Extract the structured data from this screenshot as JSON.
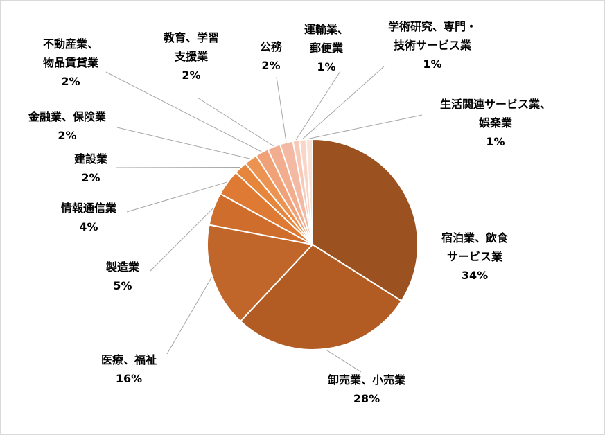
{
  "chart_data": {
    "type": "pie",
    "title": "",
    "slices": [
      {
        "name": "宿泊業、飲食サービス業",
        "label_lines": [
          "宿泊業、飲食",
          "サービス業"
        ],
        "value": 34,
        "value_label": "34%",
        "color": "#9c5220"
      },
      {
        "name": "卸売業、小売業",
        "label_lines": [
          "卸売業、小売業"
        ],
        "value": 28,
        "value_label": "28%",
        "color": "#b25c24"
      },
      {
        "name": "医療、福祉",
        "label_lines": [
          "医療、福祉"
        ],
        "value": 16,
        "value_label": "16%",
        "color": "#c0662a"
      },
      {
        "name": "製造業",
        "label_lines": [
          "製造業"
        ],
        "value": 5,
        "value_label": "5%",
        "color": "#cf6d2d"
      },
      {
        "name": "情報通信業",
        "label_lines": [
          "情報通信業"
        ],
        "value": 4,
        "value_label": "4%",
        "color": "#df7a34"
      },
      {
        "name": "建設業",
        "label_lines": [
          "建設業"
        ],
        "value": 2,
        "value_label": "2%",
        "color": "#e6853c"
      },
      {
        "name": "金融業、保険業",
        "label_lines": [
          "金融業、保険業"
        ],
        "value": 2,
        "value_label": "2%",
        "color": "#ed9351"
      },
      {
        "name": "不動産業、物品賃貸業",
        "label_lines": [
          "不動産業、",
          "物品賃貸業"
        ],
        "value": 2,
        "value_label": "2%",
        "color": "#f0a178"
      },
      {
        "name": "教育、学習支援業",
        "label_lines": [
          "教育、学習",
          "支援業"
        ],
        "value": 2,
        "value_label": "2%",
        "color": "#f2ad8e"
      },
      {
        "name": "公務",
        "label_lines": [
          "公務"
        ],
        "value": 2,
        "value_label": "2%",
        "color": "#f4b9a2"
      },
      {
        "name": "運輸業、郵便業",
        "label_lines": [
          "運輸業、",
          "郵便業"
        ],
        "value": 1,
        "value_label": "1%",
        "color": "#f7c9b6"
      },
      {
        "name": "学術研究、専門・技術サービス業",
        "label_lines": [
          "学術研究、専門・",
          "技術サービス業"
        ],
        "value": 1,
        "value_label": "1%",
        "color": "#f8d5c6"
      },
      {
        "name": "生活関連サービス業、娯楽業",
        "label_lines": [
          "生活関連サービス業、",
          "娯楽業"
        ],
        "value": 1,
        "value_label": "1%",
        "color": "#fae2d6"
      }
    ],
    "legend": "none"
  }
}
